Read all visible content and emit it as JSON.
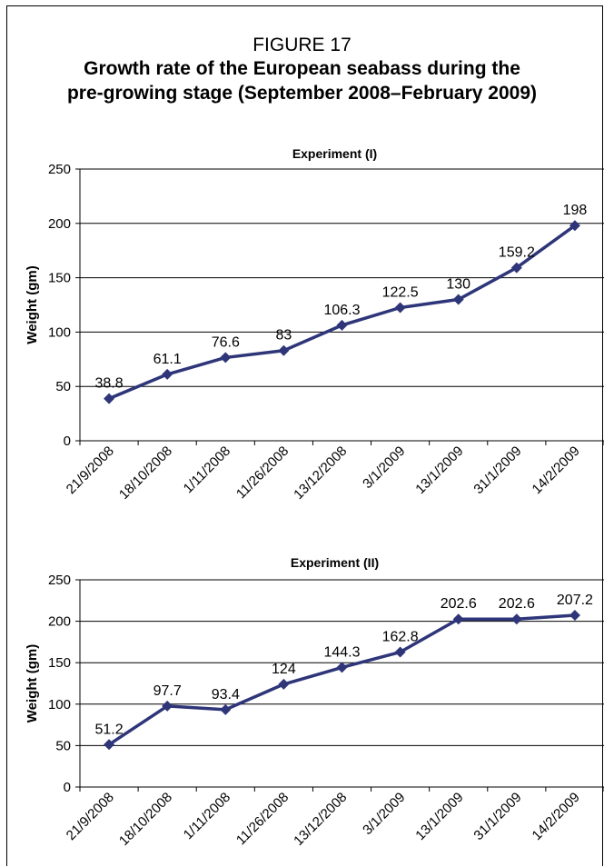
{
  "figure": {
    "label": "FIGURE 17",
    "title_line1": "Growth rate of the European seabass during the",
    "title_line2": "pre-growing stage (September 2008–February 2009)"
  },
  "chart_data": [
    {
      "type": "line",
      "title": "Experiment (I)",
      "xlabel": "",
      "ylabel": "Weight (gm)",
      "categories": [
        "21/9/2008",
        "18/10/2008",
        "1/11/2008",
        "11/26/2008",
        "13/12/2008",
        "3/1/2009",
        "13/1/2009",
        "31/1/2009",
        "14/2/2009"
      ],
      "series": [
        {
          "values": [
            38.8,
            61.1,
            76.6,
            83,
            106.3,
            122.5,
            130,
            159.2,
            198
          ]
        }
      ],
      "data_labels": [
        "38.8",
        "61.1",
        "76.6",
        "83",
        "106.3",
        "122.5",
        "130",
        "159.2",
        "198"
      ],
      "ylim": [
        0,
        250
      ],
      "yticks": [
        "0",
        "50",
        "100",
        "150",
        "200",
        "250"
      ],
      "grid": true,
      "line_color": "#2e3679"
    },
    {
      "type": "line",
      "title": "Experiment (II)",
      "xlabel": "",
      "ylabel": "Weight (gm)",
      "categories": [
        "21/9/2008",
        "18/10/2008",
        "1/11/2008",
        "11/26/2008",
        "13/12/2008",
        "3/1/2009",
        "13/1/2009",
        "31/1/2009",
        "14/2/2009"
      ],
      "series": [
        {
          "values": [
            51.2,
            97.7,
            93.4,
            124,
            144.3,
            162.8,
            202.6,
            202.6,
            207.2
          ]
        }
      ],
      "data_labels": [
        "51.2",
        "97.7",
        "93.4",
        "124",
        "144.3",
        "162.8",
        "202.6",
        "202.6",
        "207.2"
      ],
      "ylim": [
        0,
        250
      ],
      "yticks": [
        "0",
        "50",
        "100",
        "150",
        "200",
        "250"
      ],
      "grid": true,
      "line_color": "#2e3679"
    }
  ]
}
